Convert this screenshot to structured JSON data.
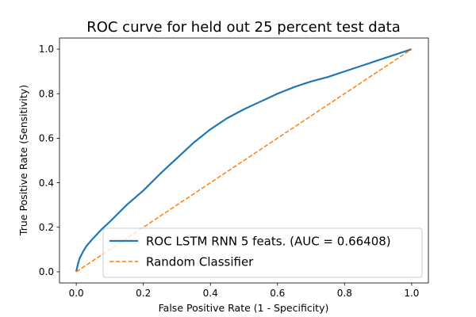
{
  "chart_data": {
    "type": "line",
    "title": "ROC curve for held out 25 percent test data",
    "xlabel": "False Positive Rate (1 - Specificity)",
    "ylabel": "True Positive Rate (Sensitivity)",
    "xlim": [
      -0.05,
      1.05
    ],
    "ylim": [
      -0.05,
      1.05
    ],
    "xticks": [
      "0.0",
      "0.2",
      "0.4",
      "0.6",
      "0.8",
      "1.0"
    ],
    "yticks": [
      "0.0",
      "0.2",
      "0.4",
      "0.6",
      "0.8",
      "1.0"
    ],
    "grid": false,
    "legend_position": "lower-right",
    "series": [
      {
        "name": "ROC LSTM RNN 5 feats. (AUC = 0.66408)",
        "color": "#1f77b4",
        "style": "solid",
        "x": [
          0.0,
          0.002,
          0.005,
          0.01,
          0.02,
          0.03,
          0.05,
          0.075,
          0.1,
          0.15,
          0.2,
          0.25,
          0.3,
          0.35,
          0.4,
          0.45,
          0.5,
          0.55,
          0.6,
          0.65,
          0.7,
          0.75,
          0.8,
          0.85,
          0.9,
          0.95,
          1.0
        ],
        "y": [
          0.0,
          0.015,
          0.035,
          0.06,
          0.09,
          0.115,
          0.15,
          0.19,
          0.225,
          0.3,
          0.365,
          0.44,
          0.51,
          0.58,
          0.64,
          0.69,
          0.73,
          0.765,
          0.8,
          0.83,
          0.855,
          0.875,
          0.9,
          0.925,
          0.95,
          0.975,
          1.0
        ]
      },
      {
        "name": "Random Classifier",
        "color": "#ff7f0e",
        "style": "dashed",
        "x": [
          0.0,
          1.0
        ],
        "y": [
          0.0,
          1.0
        ]
      }
    ]
  }
}
